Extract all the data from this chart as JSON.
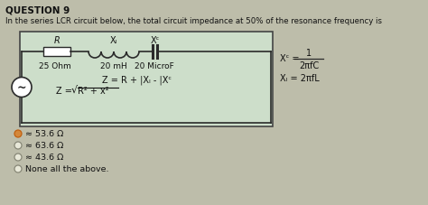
{
  "title": "QUESTION 9",
  "subtitle": "In the series LCR circuit below, the total circuit impedance at 50% of the resonance frequency is",
  "R_label": "R",
  "XL_label": "Xₗ",
  "XC_label": "Xᶜ",
  "R_val": "25 Ohm",
  "L_val": "20 mH",
  "C_val": "20 MicroF",
  "formula1": "Z = R + |Xₗ - |Xᶜ",
  "formula2": "Z =",
  "formula2b": "R² + x²",
  "xc_label": "Xᶜ =",
  "xc_top": "1",
  "xc_bot": "2πfC",
  "xl_eq": "Xₗ = 2πfL",
  "options": [
    "≈ 53.6 Ω",
    "≈ 63.6 Ω",
    "≈ 43.6 Ω",
    "None all the above."
  ],
  "opt_filled": [
    true,
    false,
    false,
    false
  ],
  "bg_color": "#bdbdaa",
  "box_bg": "#cddeca",
  "text_color": "#111111"
}
